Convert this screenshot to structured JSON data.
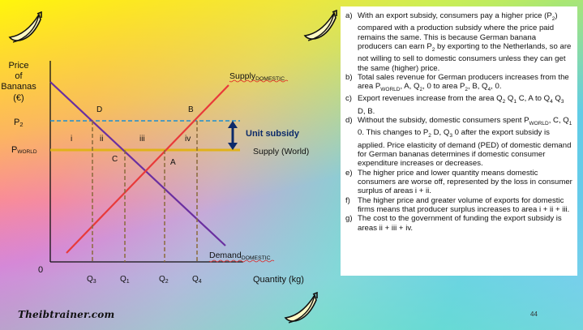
{
  "chart_data": {
    "type": "diagram",
    "y_axis_label": [
      "Price",
      "of",
      "Bananas",
      "(€)"
    ],
    "x_axis_label": "Quantity (kg)",
    "origin_label": "0",
    "price_levels": {
      "p2": "P",
      "p2_sub": "2",
      "pworld": "P",
      "pworld_sub": "WORLD"
    },
    "quantity_ticks": [
      {
        "base": "Q",
        "sub": "3"
      },
      {
        "base": "Q",
        "sub": "1"
      },
      {
        "base": "Q",
        "sub": "2"
      },
      {
        "base": "Q",
        "sub": "4"
      }
    ],
    "supply_domestic": {
      "base": "Supply",
      "sub": "DOMESTIC",
      "color": "#e83a3a"
    },
    "demand_domestic": {
      "base": "Demand",
      "sub": "DOMESTIC",
      "color": "#6a2fa0"
    },
    "supply_world": {
      "label": "Supply (World)",
      "color": "#e0b21a"
    },
    "subsidy_label": "Unit subsidy",
    "point_labels": {
      "B": "B",
      "D": "D",
      "C": "C",
      "A": "A"
    },
    "area_labels": [
      "i",
      "ii",
      "iii",
      "iv"
    ]
  },
  "notes": [
    {
      "marker": "a)",
      "segments": [
        "With an export subsidy, consumers pay a higher price (P",
        {
          "sub": "2"
        },
        ") compared with a production subsidy where the price paid remains the same. This is because German banana producers can earn P",
        {
          "sub": "2"
        },
        " by exporting to the Netherlands, so are not willing to sell to domestic consumers unless they can get the same (higher) price."
      ]
    },
    {
      "marker": "b)",
      "segments": [
        "Total sales revenue for German producers increases from the area P",
        {
          "sub": "WORLD"
        },
        ", A, Q",
        {
          "sub": "2"
        },
        ", 0 to area P",
        {
          "sub": "2"
        },
        ", B, Q",
        {
          "sub": "4"
        },
        ", 0."
      ]
    },
    {
      "marker": "c)",
      "segments": [
        "Export revenues increase from the area Q",
        {
          "sub": "2"
        },
        " Q",
        {
          "sub": "1"
        },
        " C, A to Q",
        {
          "sub": "4"
        },
        " Q",
        {
          "sub": "3"
        },
        " D, B."
      ]
    },
    {
      "marker": "d)",
      "segments": [
        "Without the subsidy, domestic consumers spent P",
        {
          "sub": "WORLD"
        },
        ", C, Q",
        {
          "sub": "1"
        },
        " 0. This changes to P",
        {
          "sub": "2"
        },
        " D, Q",
        {
          "sub": "3"
        },
        " 0 after the export subsidy is applied. Price elasticity of demand (PED) of domestic demand for German bananas determines if domestic consumer expenditure increases or decreases."
      ]
    },
    {
      "marker": "e)",
      "segments": [
        "The higher price and lower quantity means domestic consumers are worse off, represented by the loss in consumer surplus of areas i + ii."
      ]
    },
    {
      "marker": "f)",
      "segments": [
        "The higher price and greater volume of exports for domestic firms means that producer surplus increases to area i + ii + iii."
      ]
    },
    {
      "marker": "g)",
      "segments": [
        "The cost to the government of funding the export subsidy is areas ii + iii + iv."
      ]
    }
  ],
  "brand": "Theibtrainer.com",
  "page_number": "44",
  "colors": {
    "supply_domestic": "#e83a3a",
    "demand_domestic": "#6a2fa0",
    "world_supply": "#e0b21a",
    "p2_line": "#1f8fd0",
    "dashed_drop": "#8a6a3a",
    "subsidy_arrow": "#0c2a6a"
  },
  "icons": [
    "banana-icon",
    "banana-icon",
    "banana-icon"
  ]
}
